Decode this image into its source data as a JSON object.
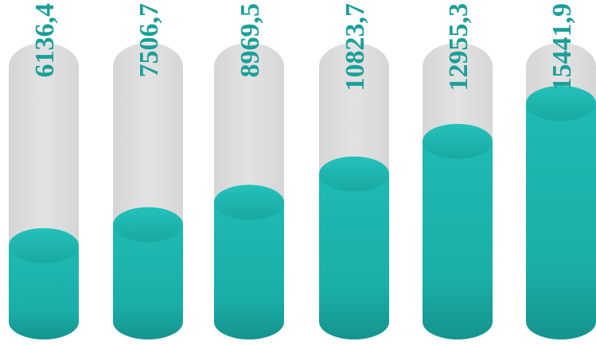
{
  "chart_data": {
    "type": "bar",
    "categories": [
      "",
      "",
      "",
      "",
      "",
      ""
    ],
    "values": [
      6136.4,
      7506.7,
      8969.5,
      10823.7,
      12955.3,
      15441.9
    ],
    "labels": [
      "6136,4",
      "7506,7",
      "8969,5",
      "10823,7",
      "12955,3",
      "15441,9"
    ],
    "title": "",
    "xlabel": "",
    "ylabel": "",
    "ylim": [
      0,
      15441.9
    ],
    "grid": false,
    "legend": "none",
    "colors": {
      "bar": "#1db6b0",
      "bar_dark": "#169a94",
      "track": "#dcdcdc",
      "label": "#1a9f99"
    }
  }
}
